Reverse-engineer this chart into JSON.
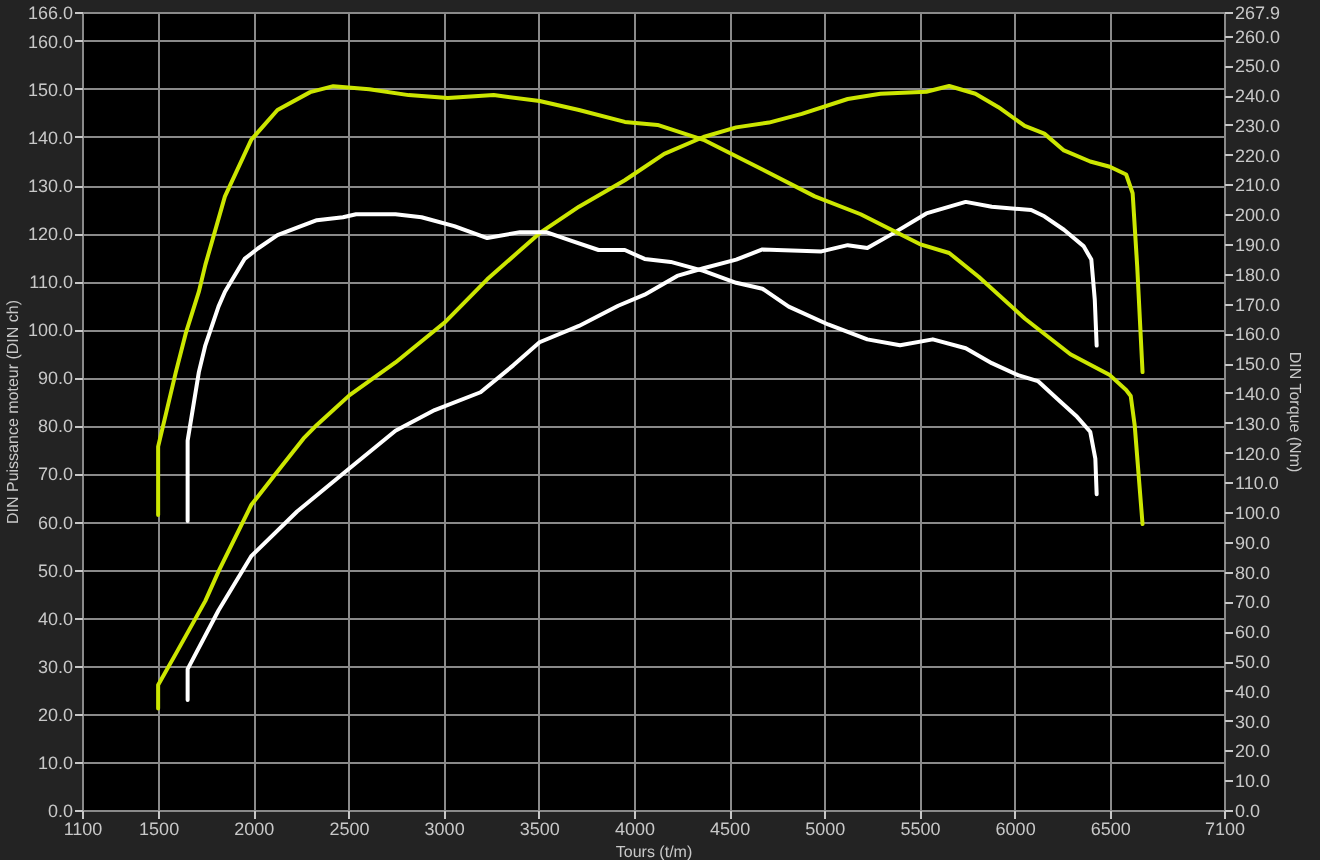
{
  "chart_data": {
    "type": "line",
    "xlabel": "Tours (t/m)",
    "ylabel": "DIN Puissance moteur (DIN ch)",
    "y2label": "DIN Torque (Nm)",
    "xlim": [
      1100,
      7100
    ],
    "xticks": [
      1100,
      1500,
      2000,
      2500,
      3000,
      3500,
      4000,
      4500,
      5000,
      5500,
      6000,
      6500,
      7100
    ],
    "ylim": [
      0,
      166
    ],
    "yticks": [
      {
        "value": 0,
        "label": "0.0"
      },
      {
        "value": 10,
        "label": "10.0"
      },
      {
        "value": 20,
        "label": "20.0"
      },
      {
        "value": 30,
        "label": "30.0"
      },
      {
        "value": 40,
        "label": "40.0"
      },
      {
        "value": 50,
        "label": "50.0"
      },
      {
        "value": 60,
        "label": "60.0"
      },
      {
        "value": 70,
        "label": "70.0"
      },
      {
        "value": 80,
        "label": "80.0"
      },
      {
        "value": 90,
        "label": "90.0"
      },
      {
        "value": 100,
        "label": "100.0"
      },
      {
        "value": 110,
        "label": "110.0"
      },
      {
        "value": 120,
        "label": "120.0"
      },
      {
        "value": 130,
        "label": "130.0"
      },
      {
        "value": 140,
        "label": "140.0"
      },
      {
        "value": 150,
        "label": "150.0"
      },
      {
        "value": 160,
        "label": "160.0"
      },
      {
        "value": 166,
        "label": "166.0"
      }
    ],
    "y2lim": [
      0,
      267.9
    ],
    "y2ticks": [
      {
        "value": 0,
        "label": "0.0"
      },
      {
        "value": 10,
        "label": "10.0"
      },
      {
        "value": 20,
        "label": "20.0"
      },
      {
        "value": 30,
        "label": "30.0"
      },
      {
        "value": 40,
        "label": "40.0"
      },
      {
        "value": 50,
        "label": "50.0"
      },
      {
        "value": 60,
        "label": "60.0"
      },
      {
        "value": 70,
        "label": "70.0"
      },
      {
        "value": 80,
        "label": "80.0"
      },
      {
        "value": 90,
        "label": "90.0"
      },
      {
        "value": 100,
        "label": "100.0"
      },
      {
        "value": 110,
        "label": "110.0"
      },
      {
        "value": 120,
        "label": "120.0"
      },
      {
        "value": 130,
        "label": "130.0"
      },
      {
        "value": 140,
        "label": "140.0"
      },
      {
        "value": 150,
        "label": "150.0"
      },
      {
        "value": 160,
        "label": "160.0"
      },
      {
        "value": 170,
        "label": "170.0"
      },
      {
        "value": 180,
        "label": "180.0"
      },
      {
        "value": 190,
        "label": "190.0"
      },
      {
        "value": 200,
        "label": "200.0"
      },
      {
        "value": 210,
        "label": "210.0"
      },
      {
        "value": 220,
        "label": "220.0"
      },
      {
        "value": 230,
        "label": "230.0"
      },
      {
        "value": 240,
        "label": "240.0"
      },
      {
        "value": 250,
        "label": "250.0"
      },
      {
        "value": 260,
        "label": "260.0"
      },
      267.9
    ],
    "grid": true,
    "series": [
      {
        "color": "#cce600",
        "x": [
          1500,
          1500,
          1600,
          1748,
          1818,
          1990,
          2127,
          2264,
          2334,
          2506,
          2747,
          3005,
          3229,
          3504,
          3711,
          3952,
          4159,
          4365,
          4537,
          4709,
          4882,
          5123,
          5295,
          5536,
          5656,
          5794,
          5915,
          6053,
          6156,
          6259,
          6397,
          6500,
          6586,
          6620,
          6644,
          6672
        ],
        "values": [
          21.1,
          26,
          33,
          43.5,
          49.7,
          63.5,
          70.4,
          77.3,
          80.1,
          86.3,
          93.1,
          101.4,
          110.4,
          120,
          125.5,
          131,
          136.5,
          140,
          142,
          143,
          144.8,
          147.9,
          149,
          149.4,
          150.6,
          149,
          146.2,
          142.3,
          140.7,
          137.2,
          134.9,
          133.8,
          132.2,
          128.3,
          113.1,
          91.1
        ]
      },
      {
        "color": "#ffffff",
        "x": [
          1655,
          1655,
          1817,
          1989,
          2230,
          2506,
          2747,
          2953,
          3194,
          3366,
          3504,
          3711,
          3917,
          4056,
          4227,
          4365,
          4537,
          4675,
          4985,
          5123,
          5226,
          5364,
          5536,
          5743,
          5880,
          6087,
          6156,
          6259,
          6362,
          6403,
          6421,
          6431
        ],
        "values": [
          22.9,
          29.3,
          41.5,
          52.8,
          62.1,
          71.1,
          78.9,
          83.2,
          86.9,
          92.5,
          97.3,
          100.7,
          104.9,
          107.2,
          111.1,
          112.7,
          114.5,
          116.6,
          116.2,
          117.5,
          116.9,
          120,
          124.1,
          126.5,
          125.5,
          124.8,
          123.5,
          120.7,
          117.3,
          114.5,
          106.2,
          96.6
        ]
      },
      {
        "color": "#cce600",
        "axis": "y2",
        "x": [
          1500,
          1500,
          1593,
          1645,
          1714,
          1748,
          1851,
          1989,
          2127,
          2299,
          2420,
          2609,
          2816,
          3022,
          3263,
          3504,
          3711,
          3952,
          4124,
          4365,
          4675,
          4950,
          5191,
          5501,
          5656,
          5811,
          6053,
          6293,
          6500,
          6586,
          6610,
          6631,
          6672
        ],
        "values": [
          99,
          122,
          147,
          160,
          174,
          183,
          206,
          225,
          235,
          241,
          243,
          242,
          240,
          239,
          240,
          238,
          235,
          231,
          230,
          225,
          215,
          206,
          200,
          190,
          187,
          179,
          165,
          153,
          146,
          141,
          139,
          129,
          96
        ]
      },
      {
        "color": "#ffffff",
        "axis": "y2",
        "x": [
          1655,
          1655,
          1714,
          1748,
          1817,
          1851,
          1954,
          2024,
          2127,
          2230,
          2334,
          2471,
          2540,
          2747,
          2884,
          3056,
          3229,
          3401,
          3539,
          3676,
          3814,
          3952,
          4056,
          4193,
          4365,
          4537,
          4675,
          4813,
          5020,
          5226,
          5398,
          5570,
          5743,
          5880,
          6018,
          6122,
          6225,
          6328,
          6397,
          6424,
          6431
        ],
        "values": [
          97,
          124,
          147,
          156,
          169,
          174,
          185,
          188.5,
          193,
          195.5,
          198,
          199,
          200,
          200,
          199,
          196,
          192,
          194,
          194,
          191,
          188,
          188,
          185,
          184,
          181,
          177,
          175,
          169,
          163,
          158,
          156,
          158,
          155,
          150,
          146,
          144,
          138,
          132,
          127,
          118,
          106
        ]
      }
    ]
  }
}
